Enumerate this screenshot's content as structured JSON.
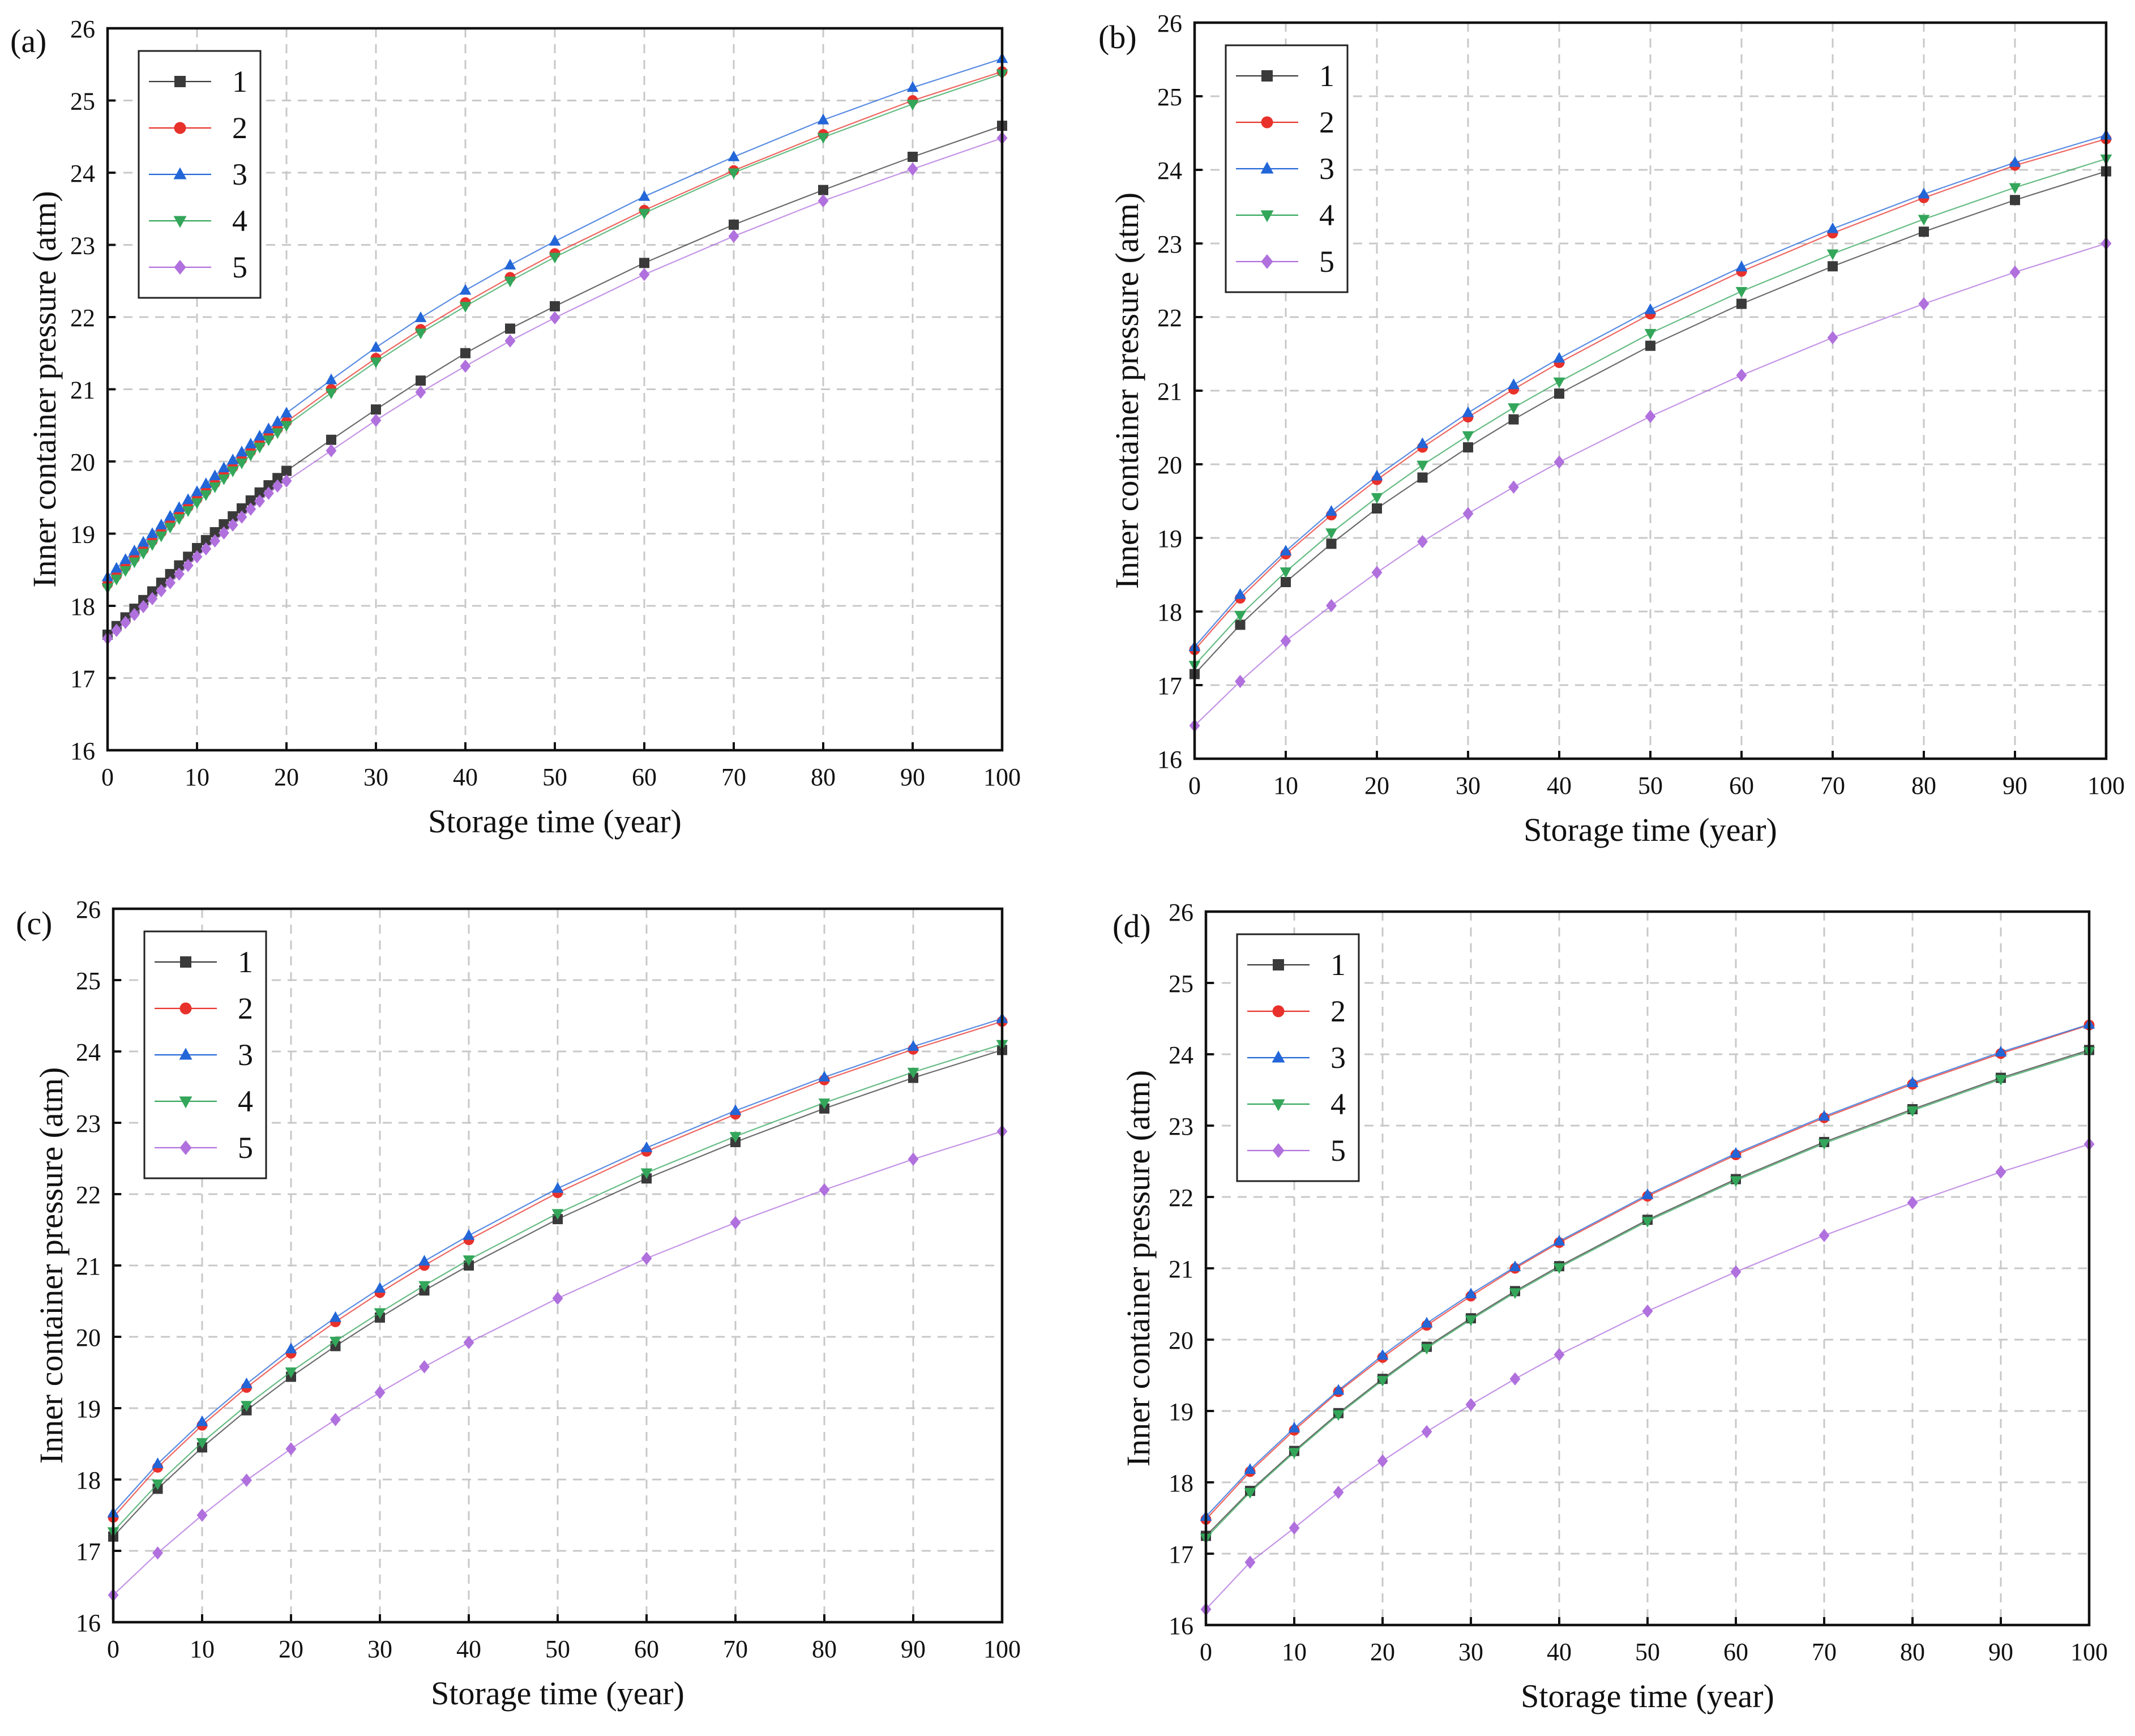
{
  "colors": {
    "series_1": "#3a3a3a",
    "series_2": "#e8312b",
    "series_3": "#2266d8",
    "series_4": "#33a65a",
    "series_5": "#b070dd"
  },
  "chart_data": [
    {
      "type": "line",
      "panel_label": "(a)",
      "xlabel": "Storage time (year)",
      "ylabel": "Inner container pressure (atm)",
      "xlim": [
        0,
        100
      ],
      "ylim": [
        16,
        26
      ],
      "xticks": [
        "0",
        "10",
        "20",
        "30",
        "40",
        "50",
        "60",
        "70",
        "80",
        "90",
        "100"
      ],
      "yticks": [
        "16",
        "17",
        "18",
        "19",
        "20",
        "21",
        "22",
        "23",
        "24",
        "25",
        "26"
      ],
      "legend": "top-left",
      "x": [
        0,
        1,
        2,
        3,
        4,
        5,
        6,
        7,
        8,
        9,
        10,
        11,
        12,
        13,
        14,
        15,
        16,
        17,
        18,
        19,
        20,
        25,
        30,
        35,
        40,
        45,
        50,
        60,
        70,
        80,
        90,
        100
      ],
      "series": [
        {
          "name": "1",
          "marker": "square",
          "values": [
            17.6,
            17.72,
            17.84,
            17.96,
            18.08,
            18.2,
            18.32,
            18.44,
            18.56,
            18.68,
            18.8,
            18.91,
            19.02,
            19.13,
            19.24,
            19.35,
            19.46,
            19.57,
            19.67,
            19.77,
            19.87,
            20.3,
            20.72,
            21.12,
            21.5,
            21.84,
            22.15,
            22.75,
            23.28,
            23.76,
            24.22,
            24.65
          ]
        },
        {
          "name": "2",
          "marker": "circle",
          "values": [
            18.3,
            18.42,
            18.54,
            18.66,
            18.78,
            18.9,
            19.02,
            19.14,
            19.26,
            19.37,
            19.48,
            19.59,
            19.7,
            19.81,
            19.92,
            20.03,
            20.14,
            20.25,
            20.35,
            20.45,
            20.55,
            21.0,
            21.43,
            21.83,
            22.2,
            22.55,
            22.88,
            23.48,
            24.03,
            24.53,
            25.0,
            25.4
          ]
        },
        {
          "name": "3",
          "marker": "triangle-up",
          "values": [
            18.4,
            18.52,
            18.64,
            18.76,
            18.88,
            19.0,
            19.12,
            19.24,
            19.36,
            19.47,
            19.58,
            19.69,
            19.8,
            19.91,
            20.02,
            20.13,
            20.24,
            20.35,
            20.45,
            20.55,
            20.67,
            21.13,
            21.58,
            21.99,
            22.37,
            22.72,
            23.05,
            23.67,
            24.22,
            24.73,
            25.18,
            25.58
          ]
        },
        {
          "name": "4",
          "marker": "triangle-down",
          "values": [
            18.25,
            18.37,
            18.49,
            18.61,
            18.73,
            18.85,
            18.97,
            19.09,
            19.21,
            19.32,
            19.43,
            19.54,
            19.65,
            19.76,
            19.87,
            19.98,
            20.09,
            20.2,
            20.3,
            20.4,
            20.5,
            20.95,
            21.38,
            21.78,
            22.15,
            22.5,
            22.83,
            23.44,
            24.0,
            24.49,
            24.95,
            25.37
          ]
        },
        {
          "name": "5",
          "marker": "diamond",
          "values": [
            17.55,
            17.66,
            17.77,
            17.88,
            17.99,
            18.1,
            18.21,
            18.32,
            18.44,
            18.56,
            18.68,
            18.79,
            18.9,
            19.01,
            19.12,
            19.23,
            19.34,
            19.45,
            19.56,
            19.66,
            19.73,
            20.15,
            20.57,
            20.96,
            21.32,
            21.67,
            21.99,
            22.59,
            23.12,
            23.61,
            24.05,
            24.48
          ]
        }
      ]
    },
    {
      "type": "line",
      "panel_label": "(b)",
      "xlabel": "Storage time (year)",
      "ylabel": "Inner container pressure (atm)",
      "xlim": [
        0,
        100
      ],
      "ylim": [
        16,
        26
      ],
      "xticks": [
        "0",
        "10",
        "20",
        "30",
        "40",
        "50",
        "60",
        "70",
        "80",
        "90",
        "100"
      ],
      "yticks": [
        "16",
        "17",
        "18",
        "19",
        "20",
        "21",
        "22",
        "23",
        "24",
        "25",
        "26"
      ],
      "legend": "top-left",
      "x": [
        0,
        5,
        10,
        15,
        20,
        25,
        30,
        35,
        40,
        50,
        60,
        70,
        80,
        90,
        100
      ],
      "series": [
        {
          "name": "1",
          "marker": "square",
          "values": [
            17.15,
            17.82,
            18.4,
            18.92,
            19.4,
            19.82,
            20.23,
            20.61,
            20.96,
            21.61,
            22.18,
            22.69,
            23.16,
            23.59,
            23.98
          ]
        },
        {
          "name": "2",
          "marker": "circle",
          "values": [
            17.48,
            18.18,
            18.78,
            19.31,
            19.79,
            20.23,
            20.64,
            21.02,
            21.38,
            22.04,
            22.62,
            23.14,
            23.62,
            24.06,
            24.42
          ]
        },
        {
          "name": "3",
          "marker": "triangle-up",
          "values": [
            17.52,
            18.23,
            18.82,
            19.36,
            19.84,
            20.28,
            20.7,
            21.08,
            21.44,
            22.1,
            22.68,
            23.2,
            23.67,
            24.1,
            24.47
          ]
        },
        {
          "name": "4",
          "marker": "triangle-down",
          "values": [
            17.27,
            17.95,
            18.54,
            19.07,
            19.55,
            19.99,
            20.39,
            20.77,
            21.12,
            21.78,
            22.35,
            22.86,
            23.33,
            23.76,
            24.15
          ]
        },
        {
          "name": "5",
          "marker": "diamond",
          "values": [
            16.45,
            17.05,
            17.6,
            18.08,
            18.53,
            18.95,
            19.33,
            19.69,
            20.03,
            20.65,
            21.21,
            21.72,
            22.18,
            22.61,
            23.0
          ]
        }
      ]
    },
    {
      "type": "line",
      "panel_label": "(c)",
      "xlabel": "Storage time (year)",
      "ylabel": "Inner container pressure (atm)",
      "xlim": [
        0,
        100
      ],
      "ylim": [
        16,
        26
      ],
      "xticks": [
        "0",
        "10",
        "20",
        "30",
        "40",
        "50",
        "60",
        "70",
        "80",
        "90",
        "100"
      ],
      "yticks": [
        "16",
        "17",
        "18",
        "19",
        "20",
        "21",
        "22",
        "23",
        "24",
        "25",
        "26"
      ],
      "legend": "top-left",
      "x": [
        0,
        5,
        10,
        15,
        20,
        25,
        30,
        35,
        40,
        50,
        60,
        70,
        80,
        90,
        100
      ],
      "series": [
        {
          "name": "1",
          "marker": "square",
          "values": [
            17.2,
            17.87,
            18.45,
            18.97,
            19.44,
            19.87,
            20.27,
            20.65,
            21.0,
            21.65,
            22.22,
            22.73,
            23.2,
            23.63,
            24.02
          ]
        },
        {
          "name": "2",
          "marker": "circle",
          "values": [
            17.47,
            18.17,
            18.76,
            19.29,
            19.77,
            20.21,
            20.62,
            21.0,
            21.36,
            22.02,
            22.6,
            23.12,
            23.6,
            24.03,
            24.42
          ]
        },
        {
          "name": "3",
          "marker": "triangle-up",
          "values": [
            17.53,
            18.22,
            18.81,
            19.34,
            19.83,
            20.27,
            20.68,
            21.06,
            21.42,
            22.08,
            22.65,
            23.17,
            23.64,
            24.07,
            24.46
          ]
        },
        {
          "name": "4",
          "marker": "triangle-down",
          "values": [
            17.27,
            17.94,
            18.52,
            19.04,
            19.51,
            19.94,
            20.34,
            20.72,
            21.08,
            21.73,
            22.3,
            22.81,
            23.28,
            23.71,
            24.1
          ]
        },
        {
          "name": "5",
          "marker": "diamond",
          "values": [
            16.38,
            16.97,
            17.5,
            17.99,
            18.43,
            18.84,
            19.22,
            19.58,
            19.92,
            20.54,
            21.1,
            21.6,
            22.06,
            22.49,
            22.88
          ]
        }
      ]
    },
    {
      "type": "line",
      "panel_label": "(d)",
      "xlabel": "Storage time (year)",
      "ylabel": "Inner container pressure (atm)",
      "xlim": [
        0,
        100
      ],
      "ylim": [
        16,
        26
      ],
      "xticks": [
        "0",
        "10",
        "20",
        "30",
        "40",
        "50",
        "60",
        "70",
        "80",
        "90",
        "100"
      ],
      "yticks": [
        "16",
        "17",
        "18",
        "19",
        "20",
        "21",
        "22",
        "23",
        "24",
        "25",
        "26"
      ],
      "legend": "top-left",
      "x": [
        0,
        5,
        10,
        15,
        20,
        25,
        30,
        35,
        40,
        50,
        60,
        70,
        80,
        90,
        100
      ],
      "series": [
        {
          "name": "1",
          "marker": "square",
          "values": [
            17.25,
            17.88,
            18.44,
            18.97,
            19.45,
            19.9,
            20.3,
            20.68,
            21.03,
            21.68,
            22.25,
            22.77,
            23.23,
            23.67,
            24.06
          ]
        },
        {
          "name": "2",
          "marker": "circle",
          "values": [
            17.48,
            18.15,
            18.73,
            19.27,
            19.75,
            20.2,
            20.61,
            21.0,
            21.36,
            22.01,
            22.59,
            23.11,
            23.58,
            24.01,
            24.41
          ]
        },
        {
          "name": "3",
          "marker": "triangle-up",
          "values": [
            17.52,
            18.18,
            18.76,
            19.29,
            19.78,
            20.23,
            20.64,
            21.02,
            21.38,
            22.03,
            22.61,
            23.13,
            23.6,
            24.03,
            24.42
          ]
        },
        {
          "name": "4",
          "marker": "triangle-down",
          "values": [
            17.22,
            17.86,
            18.42,
            18.95,
            19.43,
            19.88,
            20.28,
            20.66,
            21.01,
            21.66,
            22.23,
            22.75,
            23.21,
            23.65,
            24.04
          ]
        },
        {
          "name": "5",
          "marker": "diamond",
          "values": [
            16.22,
            16.88,
            17.36,
            17.86,
            18.3,
            18.71,
            19.09,
            19.45,
            19.79,
            20.4,
            20.95,
            21.46,
            21.92,
            22.35,
            22.74
          ]
        }
      ]
    }
  ]
}
